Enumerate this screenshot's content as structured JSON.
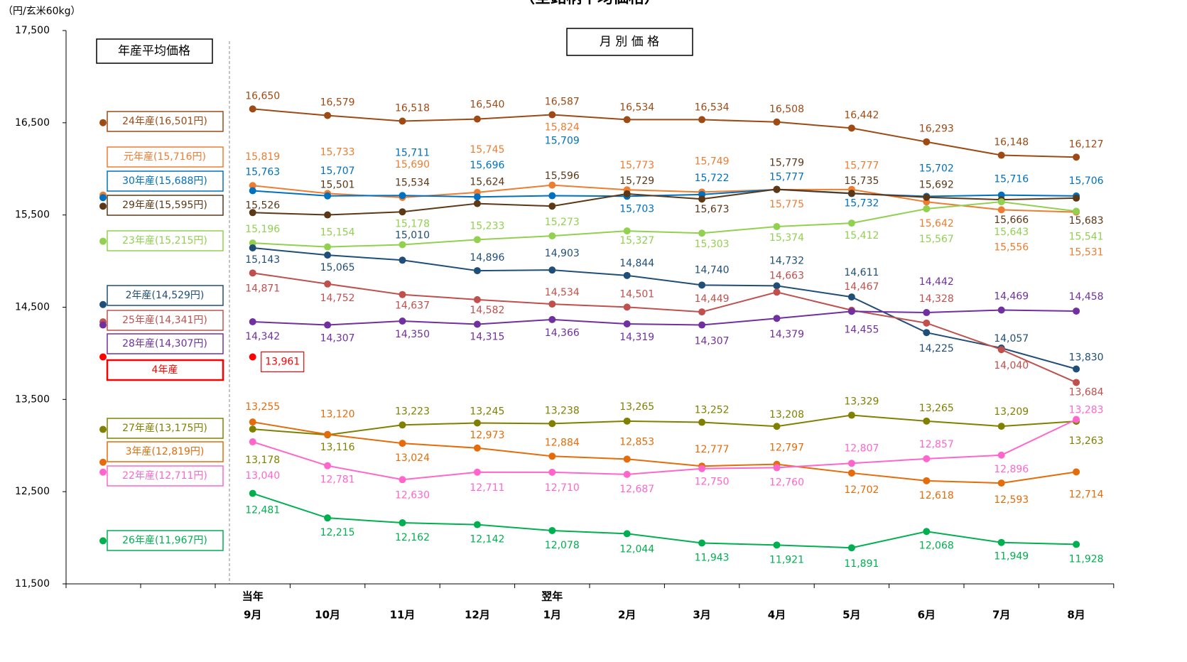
{
  "chart_data": {
    "type": "line",
    "title": "（全銘柄平均価格）",
    "y_axis_label": "（円/玄米60kg）",
    "annual_box_label": "年産平均価格",
    "monthly_box_label": "月 別 価 格",
    "categories": [
      "9月",
      "10月",
      "11月",
      "12月",
      "1月",
      "2月",
      "3月",
      "4月",
      "5月",
      "6月",
      "7月",
      "8月"
    ],
    "category_groups": [
      "当年",
      null,
      null,
      null,
      "翌年",
      null,
      null,
      null,
      null,
      null,
      null,
      null
    ],
    "ylim": [
      11500,
      17500
    ],
    "yticks": [
      {
        "value": 11500,
        "label": "11,500"
      },
      {
        "value": 12500,
        "label": "12,500"
      },
      {
        "value": 13500,
        "label": "13,500"
      },
      {
        "value": 14500,
        "label": "14,500"
      },
      {
        "value": 15500,
        "label": "15,500"
      },
      {
        "value": 16500,
        "label": "16,500"
      },
      {
        "value": 17500,
        "label": "17,500"
      }
    ],
    "grid": false,
    "series": [
      {
        "name": "24年産(16,501円)",
        "annual": 16501,
        "color": "#9e4a14",
        "values": [
          16650,
          16579,
          16518,
          16540,
          16587,
          16534,
          16534,
          16508,
          16442,
          16293,
          16148,
          16127
        ],
        "value_labels": [
          "16,650",
          "16,579",
          "16,518",
          "16,540",
          "16,587",
          "16,534",
          "16,534",
          "16,508",
          "16,442",
          "16,293",
          "16,148",
          "16,127"
        ]
      },
      {
        "name": "元年産(15,716円)",
        "annual": 15716,
        "color": "#ed7d31",
        "values": [
          15819,
          15733,
          15690,
          15745,
          15824,
          15773,
          15749,
          15775,
          15777,
          15642,
          15556,
          15531
        ],
        "value_labels": [
          "15,819",
          "15,733",
          "15,690",
          "15,745",
          "15,824",
          "15,773",
          "15,749",
          "15,775",
          "15,777",
          "15,642",
          "15,556",
          "15,531"
        ]
      },
      {
        "name": "30年産(15,688円)",
        "annual": 15688,
        "color": "#0070c0",
        "values": [
          15763,
          15707,
          15711,
          15696,
          15709,
          15703,
          15722,
          15777,
          15732,
          15702,
          15716,
          15706
        ],
        "value_labels": [
          "15,763",
          "15,707",
          "15,711",
          "15,696",
          "15,709",
          "15,703",
          "15,722",
          "15,777",
          "15,732",
          "15,702",
          "15,716",
          "15,706"
        ]
      },
      {
        "name": "29年産(15,595円)",
        "annual": 15595,
        "color": "#5c3817",
        "values": [
          15526,
          15501,
          15534,
          15624,
          15596,
          15729,
          15673,
          15779,
          15735,
          15692,
          15666,
          15683
        ],
        "value_labels": [
          "15,526",
          "15,501",
          "15,534",
          "15,624",
          "15,596",
          "15,729",
          "15,673",
          "15,779",
          "15,735",
          "15,692",
          "15,666",
          "15,683"
        ]
      },
      {
        "name": "23年産(15,215円)",
        "annual": 15215,
        "color": "#92d050",
        "values": [
          15196,
          15154,
          15178,
          15233,
          15273,
          15327,
          15303,
          15374,
          15412,
          15567,
          15643,
          15541
        ],
        "value_labels": [
          "15,196",
          "15,154",
          "15,178",
          "15,233",
          "15,273",
          "15,327",
          "15,303",
          "15,374",
          "15,412",
          "15,567",
          "15,643",
          "15,541"
        ]
      },
      {
        "name": "2年産(14,529円)",
        "annual": 14529,
        "color": "#1f4e79",
        "values": [
          15143,
          15065,
          15010,
          14896,
          14903,
          14844,
          14740,
          14732,
          14611,
          14225,
          14057,
          13830
        ],
        "value_labels": [
          "15,143",
          "15,065",
          "15,010",
          "14,896",
          "14,903",
          "14,844",
          "14,740",
          "14,732",
          "14,611",
          "14,225",
          "14,057",
          "13,830"
        ]
      },
      {
        "name": "25年産(14,341円)",
        "annual": 14341,
        "color": "#c0504d",
        "values": [
          14871,
          14752,
          14637,
          14582,
          14534,
          14501,
          14449,
          14663,
          14467,
          14328,
          14040,
          13684
        ],
        "value_labels": [
          "14,871",
          "14,752",
          "14,637",
          "14,582",
          "14,534",
          "14,501",
          "14,449",
          "14,663",
          "14,467",
          "14,328",
          "14,040",
          "13,684"
        ]
      },
      {
        "name": "28年産(14,307円)",
        "annual": 14307,
        "color": "#7030a0",
        "values": [
          14342,
          14307,
          14350,
          14315,
          14366,
          14319,
          14307,
          14379,
          14455,
          14442,
          14469,
          14458
        ],
        "value_labels": [
          "14,342",
          "14,307",
          "14,350",
          "14,315",
          "14,366",
          "14,319",
          "14,307",
          "14,379",
          "14,455",
          "14,442",
          "14,469",
          "14,458"
        ]
      },
      {
        "name": "4年産",
        "annual": 13961,
        "color": "#ff0000",
        "values": [
          13961,
          null,
          null,
          null,
          null,
          null,
          null,
          null,
          null,
          null,
          null,
          null
        ],
        "value_labels": [
          "13,961",
          null,
          null,
          null,
          null,
          null,
          null,
          null,
          null,
          null,
          null,
          null
        ]
      },
      {
        "name": "27年産(13,175円)",
        "annual": 13175,
        "color": "#808000",
        "values": [
          13178,
          13116,
          13223,
          13245,
          13238,
          13265,
          13252,
          13208,
          13329,
          13265,
          13209,
          13263
        ],
        "value_labels": [
          "13,178",
          "13,116",
          "13,223",
          "13,245",
          "13,238",
          "13,265",
          "13,252",
          "13,208",
          "13,329",
          "13,265",
          "13,209",
          "13,263"
        ]
      },
      {
        "name": "3年産(12,819円)",
        "annual": 12819,
        "color": "#e46c0a",
        "values": [
          13255,
          13120,
          13024,
          12973,
          12884,
          12853,
          12777,
          12797,
          12702,
          12618,
          12593,
          12714
        ],
        "value_labels": [
          "13,255",
          "13,120",
          "13,024",
          "12,973",
          "12,884",
          "12,853",
          "12,777",
          "12,797",
          "12,702",
          "12,618",
          "12,593",
          "12,714"
        ]
      },
      {
        "name": "22年産(12,711円)",
        "annual": 12711,
        "color": "#ff66cc",
        "values": [
          13040,
          12781,
          12630,
          12711,
          12710,
          12687,
          12750,
          12760,
          12807,
          12857,
          12896,
          13283
        ],
        "value_labels": [
          "13,040",
          "12,781",
          "12,630",
          "12,711",
          "12,710",
          "12,687",
          "12,750",
          "12,760",
          "12,807",
          "12,857",
          "12,896",
          "13,283"
        ]
      },
      {
        "name": "26年産(11,967円)",
        "annual": 11967,
        "color": "#00b050",
        "values": [
          12481,
          12215,
          12162,
          12142,
          12078,
          12044,
          11943,
          11921,
          11891,
          12068,
          11949,
          11928
        ],
        "value_labels": [
          "12,481",
          "12,215",
          "12,162",
          "12,142",
          "12,078",
          "12,044",
          "11,943",
          "11,921",
          "11,891",
          "12,068",
          "11,949",
          "11,928"
        ]
      }
    ]
  }
}
